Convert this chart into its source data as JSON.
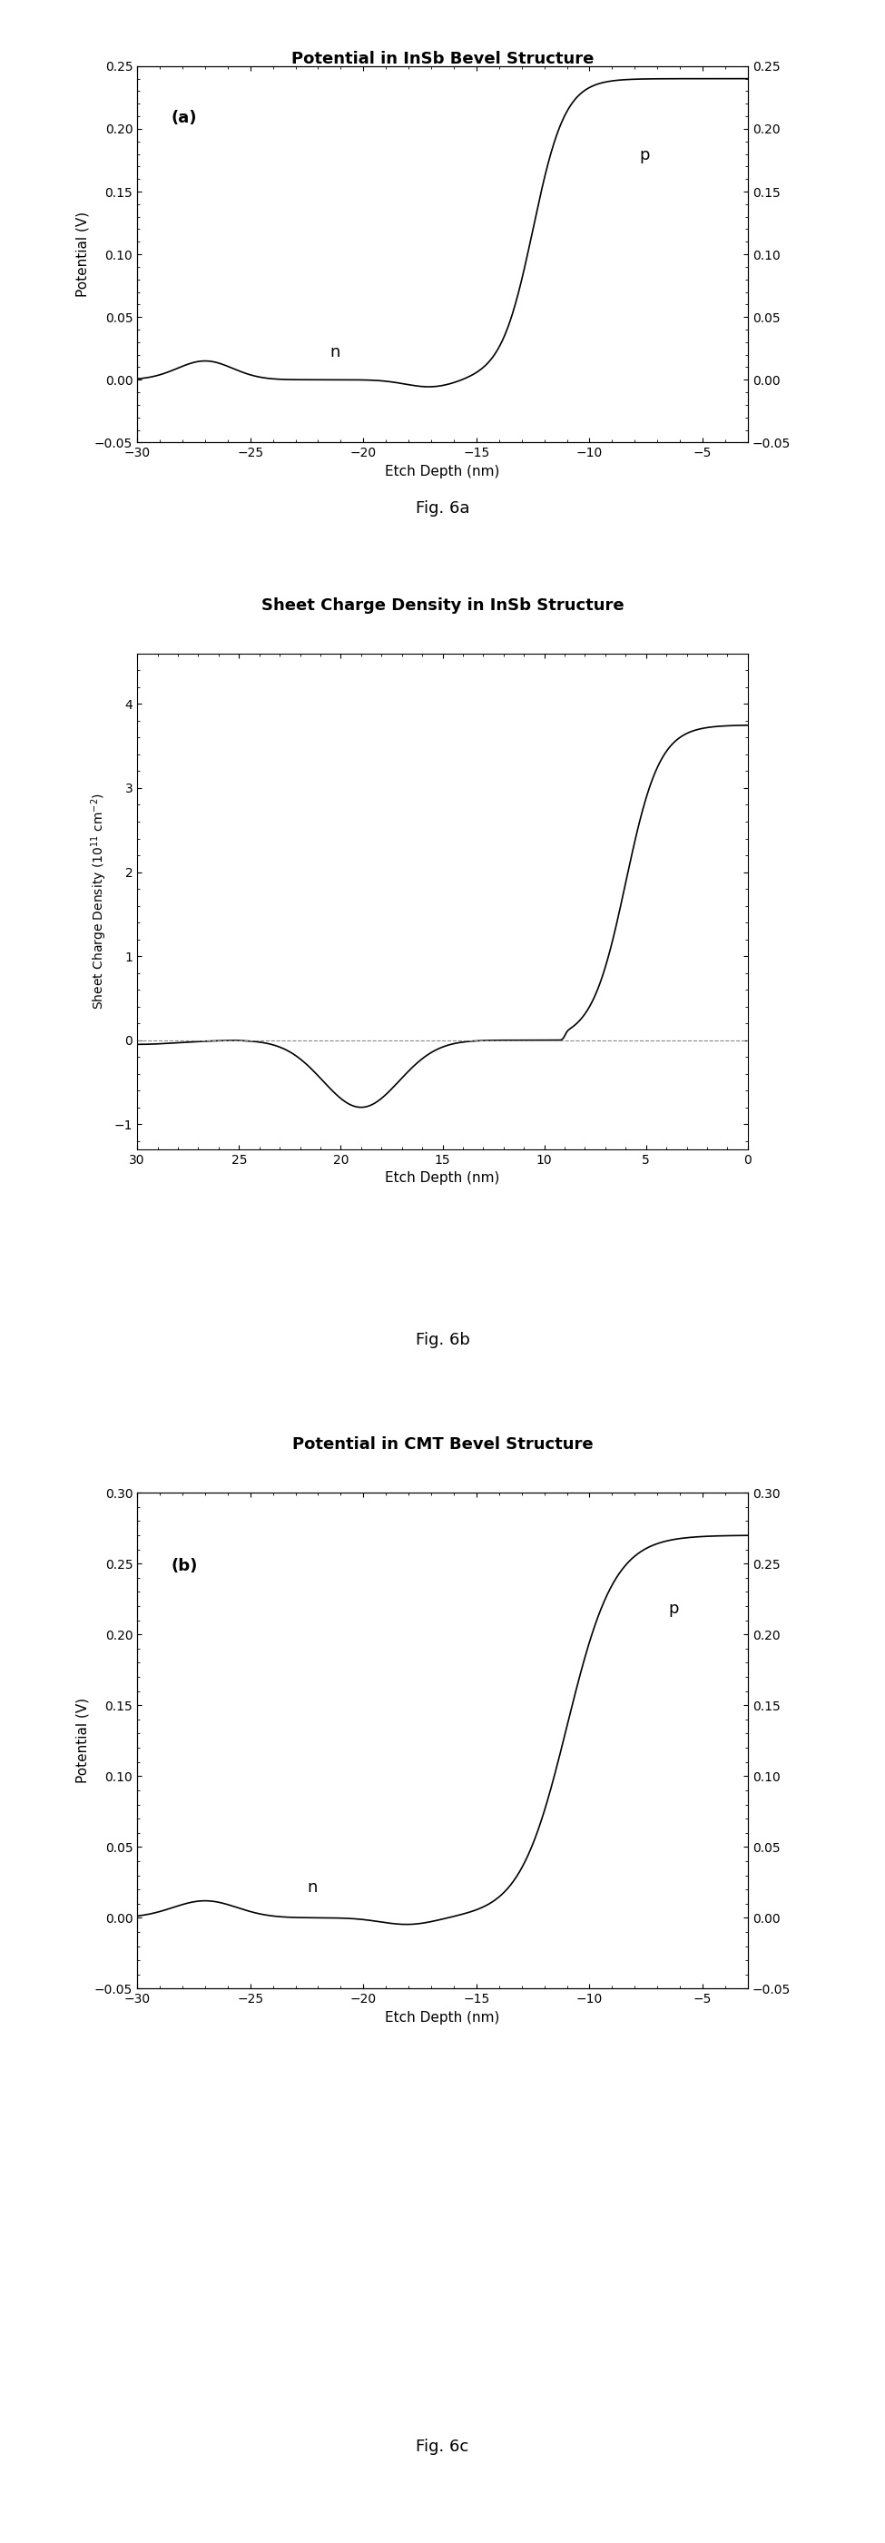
{
  "fig6a": {
    "title": "Potential in InSb Bevel Structure",
    "xlabel": "Etch Depth (nm)",
    "ylabel": "Potential (V)",
    "label_a": "(a)",
    "label_p": "p",
    "label_n": "n",
    "xlim": [
      -30,
      -3
    ],
    "ylim": [
      -0.05,
      0.25
    ],
    "xticks": [
      -30,
      -25,
      -20,
      -15,
      -10,
      -5
    ],
    "yticks": [
      -0.05,
      0.0,
      0.05,
      0.1,
      0.15,
      0.2,
      0.25
    ],
    "figcap": "Fig. 6a"
  },
  "fig6b": {
    "title": "Sheet Charge Density in InSb Structure",
    "xlabel": "Etch Depth (nm)",
    "xlim": [
      30,
      0
    ],
    "ylim": [
      -1.3,
      4.6
    ],
    "xticks": [
      30,
      25,
      20,
      15,
      10,
      5,
      0
    ],
    "yticks": [
      -1,
      0,
      1,
      2,
      3,
      4
    ],
    "figcap": "Fig. 6b"
  },
  "fig6c": {
    "title": "Potential in CMT Bevel Structure",
    "xlabel": "Etch Depth (nm)",
    "ylabel": "Potential (V)",
    "label_b": "(b)",
    "label_p": "p",
    "label_n": "n",
    "xlim": [
      -30,
      -3
    ],
    "ylim": [
      -0.05,
      0.3
    ],
    "xticks": [
      -30,
      -25,
      -20,
      -15,
      -10,
      -5
    ],
    "yticks": [
      -0.05,
      0.0,
      0.05,
      0.1,
      0.15,
      0.2,
      0.25,
      0.3
    ],
    "figcap": "Fig. 6c"
  },
  "bg_color": "#ffffff",
  "line_color": "#000000",
  "dashed_color": "#888888"
}
